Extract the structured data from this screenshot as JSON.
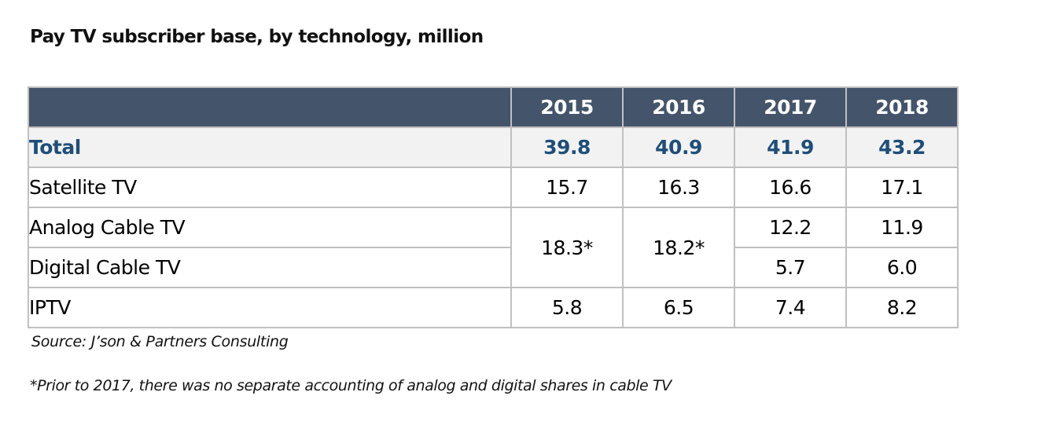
{
  "title": "Pay TV subscriber base, by technology, million",
  "table": {
    "header": [
      "",
      "2015",
      "2016",
      "2017",
      "2018"
    ],
    "total": {
      "label": "Total",
      "values": [
        "39.8",
        "40.9",
        "41.9",
        "43.2"
      ]
    },
    "satellite": {
      "label": "Satellite TV",
      "values": [
        "15.7",
        "16.3",
        "16.6",
        "17.1"
      ]
    },
    "analog": {
      "label": "Analog Cable TV",
      "values_2017_2018": [
        "12.2",
        "11.9"
      ]
    },
    "digital": {
      "label": "Digital Cable TV",
      "values_2017_2018": [
        "5.7",
        "6.0"
      ]
    },
    "cable_combined_2015_2016": [
      "18.3*",
      "18.2*"
    ],
    "iptv": {
      "label": "IPTV",
      "values": [
        "5.8",
        "6.5",
        "7.4",
        "8.2"
      ]
    }
  },
  "source": "Source: J’son & Partners Consulting",
  "footnote": "*Prior to 2017, there was no separate accounting of analog and digital shares in cable TV",
  "colors": {
    "header_bg": "#44546a",
    "header_text": "#ffffff",
    "total_text": "#1f4e79",
    "total_bg": "#f2f2f2",
    "border": "#c0c0c0"
  }
}
